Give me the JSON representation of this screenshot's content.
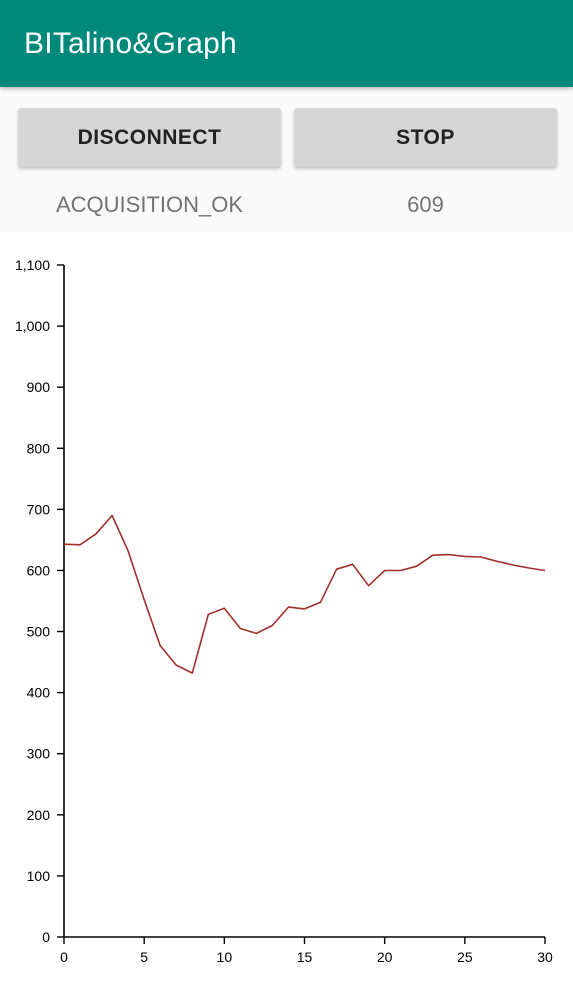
{
  "app_bar": {
    "title": "BITalino&Graph"
  },
  "controls": {
    "disconnect_label": "DISCONNECT",
    "stop_label": "STOP",
    "status_state": "ACQUISITION_OK",
    "status_count": "609"
  },
  "colors": {
    "app_bar": "#00897b",
    "line": "#a0302c",
    "button": "#d6d6d6"
  },
  "chart_data": {
    "type": "line",
    "x": [
      0,
      1,
      2,
      3,
      4,
      5,
      6,
      7,
      8,
      9,
      10,
      11,
      12,
      13,
      14,
      15,
      16,
      17,
      18,
      19,
      20,
      21,
      22,
      23,
      24,
      25,
      26,
      27,
      28,
      29,
      30
    ],
    "series": [
      {
        "values": [
          643,
          642,
          660,
          690,
          632,
          552,
          477,
          445,
          432,
          528,
          538,
          505,
          497,
          510,
          540,
          537,
          548,
          602,
          610,
          575,
          600,
          600,
          607,
          625,
          626,
          623,
          622,
          615,
          609,
          604,
          600
        ]
      }
    ],
    "xlim": [
      0,
      30
    ],
    "ylim": [
      0,
      1100
    ],
    "x_ticks": [
      "0",
      "5",
      "10",
      "15",
      "20",
      "25",
      "30"
    ],
    "y_ticks": [
      "0",
      "100",
      "200",
      "300",
      "400",
      "500",
      "600",
      "700",
      "800",
      "900",
      "1,000",
      "1,100"
    ],
    "grid": false,
    "legend": "none"
  }
}
